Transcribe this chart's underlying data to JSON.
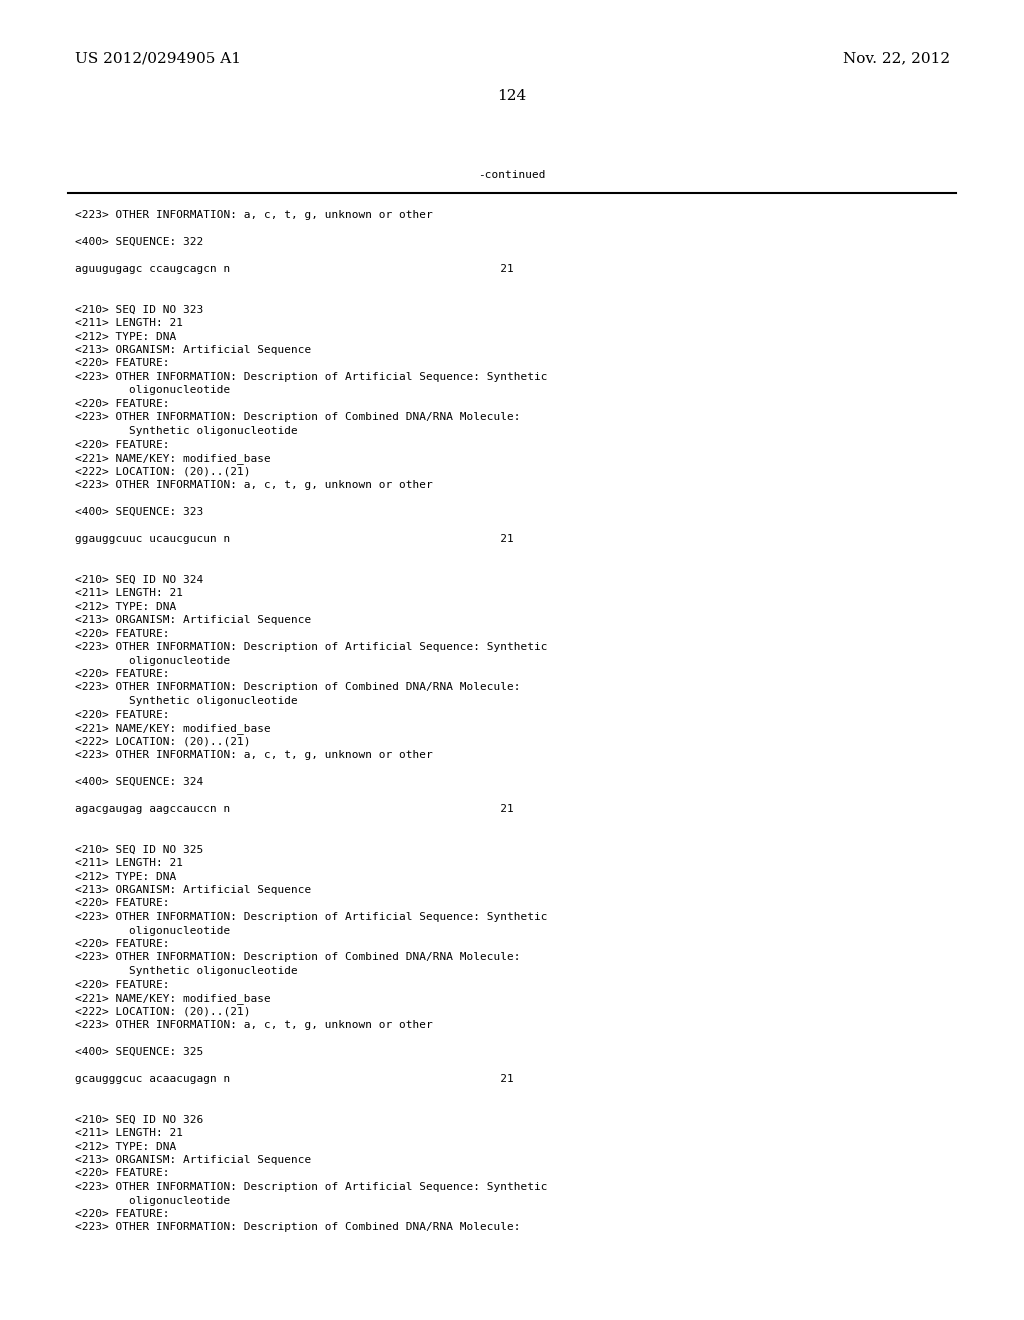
{
  "header_left": "US 2012/0294905 A1",
  "header_right": "Nov. 22, 2012",
  "page_number": "124",
  "continued_text": "-continued",
  "background_color": "#ffffff",
  "text_color": "#000000",
  "font_size_header": 11,
  "font_size_body": 8.0,
  "lines": [
    "<223> OTHER INFORMATION: a, c, t, g, unknown or other",
    "",
    "<400> SEQUENCE: 322",
    "",
    "aguugugagc ccaugcagcn n                                        21",
    "",
    "",
    "<210> SEQ ID NO 323",
    "<211> LENGTH: 21",
    "<212> TYPE: DNA",
    "<213> ORGANISM: Artificial Sequence",
    "<220> FEATURE:",
    "<223> OTHER INFORMATION: Description of Artificial Sequence: Synthetic",
    "        oligonucleotide",
    "<220> FEATURE:",
    "<223> OTHER INFORMATION: Description of Combined DNA/RNA Molecule:",
    "        Synthetic oligonucleotide",
    "<220> FEATURE:",
    "<221> NAME/KEY: modified_base",
    "<222> LOCATION: (20)..(21)",
    "<223> OTHER INFORMATION: a, c, t, g, unknown or other",
    "",
    "<400> SEQUENCE: 323",
    "",
    "ggauggcuuc ucaucgucun n                                        21",
    "",
    "",
    "<210> SEQ ID NO 324",
    "<211> LENGTH: 21",
    "<212> TYPE: DNA",
    "<213> ORGANISM: Artificial Sequence",
    "<220> FEATURE:",
    "<223> OTHER INFORMATION: Description of Artificial Sequence: Synthetic",
    "        oligonucleotide",
    "<220> FEATURE:",
    "<223> OTHER INFORMATION: Description of Combined DNA/RNA Molecule:",
    "        Synthetic oligonucleotide",
    "<220> FEATURE:",
    "<221> NAME/KEY: modified_base",
    "<222> LOCATION: (20)..(21)",
    "<223> OTHER INFORMATION: a, c, t, g, unknown or other",
    "",
    "<400> SEQUENCE: 324",
    "",
    "agacgaugag aagccauccn n                                        21",
    "",
    "",
    "<210> SEQ ID NO 325",
    "<211> LENGTH: 21",
    "<212> TYPE: DNA",
    "<213> ORGANISM: Artificial Sequence",
    "<220> FEATURE:",
    "<223> OTHER INFORMATION: Description of Artificial Sequence: Synthetic",
    "        oligonucleotide",
    "<220> FEATURE:",
    "<223> OTHER INFORMATION: Description of Combined DNA/RNA Molecule:",
    "        Synthetic oligonucleotide",
    "<220> FEATURE:",
    "<221> NAME/KEY: modified_base",
    "<222> LOCATION: (20)..(21)",
    "<223> OTHER INFORMATION: a, c, t, g, unknown or other",
    "",
    "<400> SEQUENCE: 325",
    "",
    "gcaugggcuc acaacugagn n                                        21",
    "",
    "",
    "<210> SEQ ID NO 326",
    "<211> LENGTH: 21",
    "<212> TYPE: DNA",
    "<213> ORGANISM: Artificial Sequence",
    "<220> FEATURE:",
    "<223> OTHER INFORMATION: Description of Artificial Sequence: Synthetic",
    "        oligonucleotide",
    "<220> FEATURE:",
    "<223> OTHER INFORMATION: Description of Combined DNA/RNA Molecule:"
  ]
}
